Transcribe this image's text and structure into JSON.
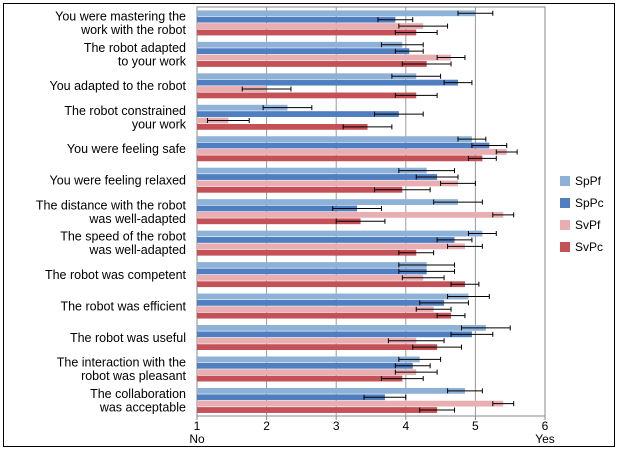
{
  "chart_data": {
    "type": "bar",
    "orientation": "horizontal",
    "categories": [
      [
        "You were mastering the",
        "work with the robot"
      ],
      [
        "The robot adapted",
        "to your work"
      ],
      [
        "You adapted to the robot"
      ],
      [
        "The robot constrained",
        "your work"
      ],
      [
        "You were feeling safe"
      ],
      [
        "You were feeling relaxed"
      ],
      [
        "The distance with the robot",
        "was well-adapted"
      ],
      [
        "The speed of the robot",
        "was well-adapted"
      ],
      [
        "The robot was competent"
      ],
      [
        "The robot was efficient"
      ],
      [
        "The robot was useful"
      ],
      [
        "The interaction with the",
        "robot was pleasant"
      ],
      [
        "The collaboration",
        "was acceptable"
      ]
    ],
    "series": [
      {
        "name": "SpPf",
        "color": "#8eb1d8",
        "values": [
          5.0,
          3.95,
          4.15,
          2.3,
          4.95,
          4.3,
          4.75,
          5.1,
          4.3,
          4.9,
          5.15,
          4.2,
          4.85
        ],
        "errors": [
          0.25,
          0.3,
          0.35,
          0.35,
          0.2,
          0.4,
          0.35,
          0.2,
          0.4,
          0.3,
          0.35,
          0.3,
          0.25
        ]
      },
      {
        "name": "SpPc",
        "color": "#4f7fc0",
        "values": [
          3.85,
          4.05,
          4.75,
          3.9,
          5.2,
          4.45,
          3.3,
          4.7,
          4.3,
          4.55,
          4.95,
          4.1,
          3.7
        ],
        "errors": [
          0.25,
          0.2,
          0.2,
          0.35,
          0.25,
          0.3,
          0.35,
          0.25,
          0.4,
          0.35,
          0.3,
          0.25,
          0.3
        ]
      },
      {
        "name": "SvPf",
        "color": "#e9aeb1",
        "values": [
          4.25,
          4.65,
          2.0,
          1.45,
          5.45,
          4.75,
          5.4,
          4.85,
          4.25,
          4.4,
          4.15,
          4.15,
          5.4
        ],
        "errors": [
          0.35,
          0.2,
          0.35,
          0.3,
          0.15,
          0.25,
          0.15,
          0.25,
          0.3,
          0.25,
          0.4,
          0.3,
          0.15
        ]
      },
      {
        "name": "SvPc",
        "color": "#c45158",
        "values": [
          4.15,
          4.3,
          4.15,
          3.45,
          5.1,
          3.95,
          3.35,
          4.15,
          4.85,
          4.65,
          4.45,
          3.95,
          4.45
        ],
        "errors": [
          0.3,
          0.35,
          0.3,
          0.35,
          0.2,
          0.4,
          0.35,
          0.25,
          0.2,
          0.2,
          0.35,
          0.3,
          0.25
        ]
      }
    ],
    "xlim": [
      1,
      6
    ],
    "xticks": [
      "1",
      "2",
      "3",
      "4",
      "5",
      "6"
    ],
    "xtick_captions": {
      "1": "No",
      "6": "Yes"
    },
    "grid": "vertical",
    "legend": "right"
  }
}
